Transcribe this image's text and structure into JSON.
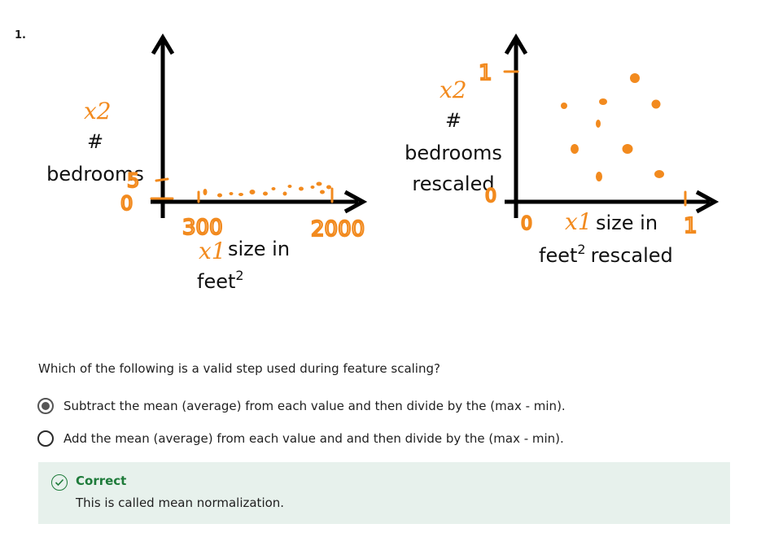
{
  "question_number": "1.",
  "figure": {
    "left_plot": {
      "y_label_var": "x2",
      "y_label_line1": "#",
      "y_label_line2": "bedrooms",
      "y_tick_high": "5",
      "y_tick_low": "0",
      "x_label_var": "x1",
      "x_label_line1": "size in",
      "x_label_line2": "feet",
      "x_label_sup": "2",
      "x_tick_low": "300",
      "x_tick_high": "2000"
    },
    "right_plot": {
      "y_label_var": "x2",
      "y_label_line1": "#",
      "y_label_line2": "bedrooms",
      "y_label_line3": "rescaled",
      "y_tick_high": "1",
      "y_tick_low": "0",
      "x_label_var": "x1",
      "x_label_line1": "size in",
      "x_label_line2a": "feet",
      "x_label_sup": "2",
      "x_label_line2b": "rescaled",
      "x_tick_low": "0",
      "x_tick_high": "1"
    },
    "accent_color": "#f28a1e"
  },
  "question_text": "Which of the following is a valid step used during feature scaling?",
  "options": [
    {
      "label": "Subtract the mean (average) from each value and then divide by the (max - min).",
      "selected": true
    },
    {
      "label": "Add the mean (average) from each value and and then divide by the (max - min).",
      "selected": false
    }
  ],
  "feedback": {
    "status": "Correct",
    "message": "This is called mean normalization.",
    "color": "#1e7b3a",
    "icon": "check-circle-icon"
  }
}
